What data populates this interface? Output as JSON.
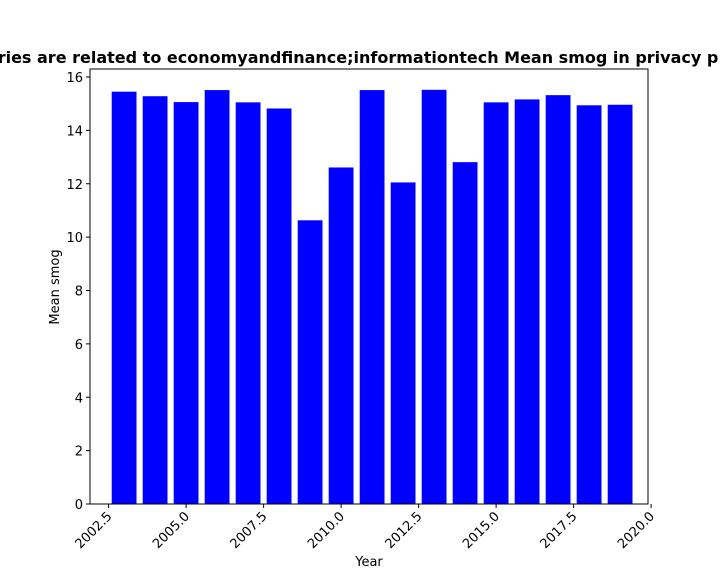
{
  "chart_data": {
    "type": "bar",
    "title": "ries are related to economyandfinance;informationtech Mean smog in privacy p",
    "xlabel": "Year",
    "ylabel": "Mean smog",
    "x": [
      2003,
      2004,
      2005,
      2006,
      2007,
      2008,
      2009,
      2010,
      2011,
      2012,
      2013,
      2014,
      2015,
      2016,
      2017,
      2018,
      2019
    ],
    "values": [
      15.45,
      15.28,
      15.06,
      15.51,
      15.05,
      14.82,
      10.63,
      12.61,
      15.51,
      12.05,
      15.52,
      12.81,
      15.05,
      15.16,
      15.32,
      14.94,
      14.96
    ],
    "xlim": [
      2001.9,
      2019.9
    ],
    "ylim": [
      0,
      16.3
    ],
    "xticks": [
      2002.5,
      2005.0,
      2007.5,
      2010.0,
      2012.5,
      2015.0,
      2017.5,
      2020.0
    ],
    "xtick_labels": [
      "2002.5",
      "2005.0",
      "2007.5",
      "2010.0",
      "2012.5",
      "2015.0",
      "2017.5",
      "2020.0"
    ],
    "yticks": [
      0,
      2,
      4,
      6,
      8,
      10,
      12,
      14,
      16
    ],
    "ytick_labels": [
      "0",
      "2",
      "4",
      "6",
      "8",
      "10",
      "12",
      "14",
      "16"
    ],
    "bar_width": 0.8,
    "bar_color": "#0000ff",
    "grid": false
  }
}
